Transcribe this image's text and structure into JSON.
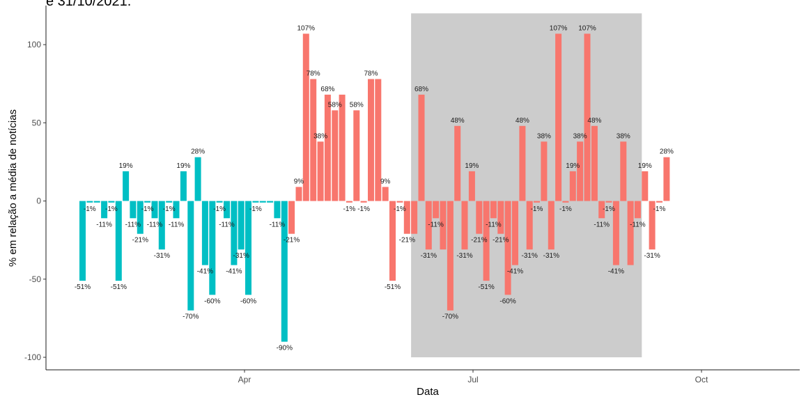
{
  "caption": "e 31/10/2021.",
  "chart_data": {
    "type": "bar",
    "title": "",
    "xlabel": "Data",
    "ylabel": "% em relação a média de notícias",
    "ylim": [
      -108,
      125
    ],
    "y_ticks": [
      -100,
      -50,
      0,
      50,
      100
    ],
    "x_ticks": [
      "Apr",
      "Jul",
      "Oct"
    ],
    "grid": false,
    "legend": "none",
    "highlight_range": {
      "start": "2021-05-03",
      "end": "2021-06-10",
      "color": "#cccccc"
    },
    "colors": {
      "before": "#00bfc4",
      "after": "#f8766d"
    },
    "bars": [
      {
        "date": "2021-01-25",
        "value": -51,
        "label": "-51%",
        "group": "before"
      },
      {
        "date": "2021-01-26",
        "value": -1,
        "label": "-1%",
        "group": "before"
      },
      {
        "date": "2021-01-28",
        "value": -1,
        "label": "",
        "group": "before"
      },
      {
        "date": "2021-02-01",
        "value": -11,
        "label": "-11%",
        "group": "before"
      },
      {
        "date": "2021-02-02",
        "value": -1,
        "label": "-1%",
        "group": "before"
      },
      {
        "date": "2021-02-04",
        "value": -51,
        "label": "-51%",
        "group": "before"
      },
      {
        "date": "2021-02-05",
        "value": 19,
        "label": "19%",
        "group": "before"
      },
      {
        "date": "2021-02-06",
        "value": -11,
        "label": "-11%",
        "group": "before"
      },
      {
        "date": "2021-02-08",
        "value": -21,
        "label": "-21%",
        "group": "before"
      },
      {
        "date": "2021-02-09",
        "value": -1,
        "label": "-1%",
        "group": "before"
      },
      {
        "date": "2021-02-10",
        "value": -11,
        "label": "-11%",
        "group": "before"
      },
      {
        "date": "2021-02-12",
        "value": -31,
        "label": "-31%",
        "group": "before"
      },
      {
        "date": "2021-02-13",
        "value": -1,
        "label": "-1%",
        "group": "before"
      },
      {
        "date": "2021-02-15",
        "value": -11,
        "label": "-11%",
        "group": "before"
      },
      {
        "date": "2021-02-16",
        "value": 19,
        "label": "19%",
        "group": "before"
      },
      {
        "date": "2021-02-18",
        "value": -70,
        "label": "-70%",
        "group": "before"
      },
      {
        "date": "2021-02-19",
        "value": 28,
        "label": "28%",
        "group": "before"
      },
      {
        "date": "2021-02-21",
        "value": -41,
        "label": "-41%",
        "group": "before"
      },
      {
        "date": "2021-02-22",
        "value": -60,
        "label": "-60%",
        "group": "before"
      },
      {
        "date": "2021-02-24",
        "value": -1,
        "label": "-1%",
        "group": "before"
      },
      {
        "date": "2021-02-25",
        "value": -11,
        "label": "-11%",
        "group": "before"
      },
      {
        "date": "2021-02-27",
        "value": -41,
        "label": "-41%",
        "group": "before"
      },
      {
        "date": "2021-03-03",
        "value": -31,
        "label": "-31%",
        "group": "before"
      },
      {
        "date": "2021-03-05",
        "value": -60,
        "label": "-60%",
        "group": "before"
      },
      {
        "date": "2021-03-06",
        "value": -1,
        "label": "-1%",
        "group": "before"
      },
      {
        "date": "2021-03-07",
        "value": -1,
        "label": "",
        "group": "before"
      },
      {
        "date": "2021-03-09",
        "value": -1,
        "label": "",
        "group": "before"
      },
      {
        "date": "2021-03-11",
        "value": -11,
        "label": "-11%",
        "group": "before"
      },
      {
        "date": "2021-03-13",
        "value": -90,
        "label": "-90%",
        "group": "before"
      },
      {
        "date": "2021-04-14",
        "value": -21,
        "label": "-21%",
        "group": "after"
      },
      {
        "date": "2021-04-15",
        "value": 9,
        "label": "9%",
        "group": "after"
      },
      {
        "date": "2021-04-16",
        "value": 107,
        "label": "107%",
        "group": "after"
      },
      {
        "date": "2021-04-17",
        "value": 78,
        "label": "78%",
        "group": "after"
      },
      {
        "date": "2021-04-18",
        "value": 38,
        "label": "38%",
        "group": "after"
      },
      {
        "date": "2021-04-19",
        "value": 68,
        "label": "68%",
        "group": "after"
      },
      {
        "date": "2021-04-20",
        "value": 58,
        "label": "58%",
        "group": "after"
      },
      {
        "date": "2021-04-21",
        "value": 68,
        "label": "",
        "group": "after"
      },
      {
        "date": "2021-04-22",
        "value": -1,
        "label": "-1%",
        "group": "after"
      },
      {
        "date": "2021-04-23",
        "value": 58,
        "label": "58%",
        "group": "after"
      },
      {
        "date": "2021-04-24",
        "value": -1,
        "label": "-1%",
        "group": "after"
      },
      {
        "date": "2021-04-25",
        "value": 78,
        "label": "78%",
        "group": "after"
      },
      {
        "date": "2021-04-26",
        "value": 78,
        "label": "",
        "group": "after"
      },
      {
        "date": "2021-04-27",
        "value": 9,
        "label": "9%",
        "group": "after"
      },
      {
        "date": "2021-04-28",
        "value": -51,
        "label": "-51%",
        "group": "after"
      },
      {
        "date": "2021-04-29",
        "value": -1,
        "label": "-1%",
        "group": "after"
      },
      {
        "date": "2021-05-01",
        "value": -21,
        "label": "-21%",
        "group": "after"
      },
      {
        "date": "2021-05-03",
        "value": -21,
        "label": "",
        "group": "after"
      },
      {
        "date": "2021-05-05",
        "value": 68,
        "label": "68%",
        "group": "after"
      },
      {
        "date": "2021-05-08",
        "value": -31,
        "label": "-31%",
        "group": "after"
      },
      {
        "date": "2021-05-09",
        "value": -11,
        "label": "-11%",
        "group": "after"
      },
      {
        "date": "2021-05-10",
        "value": -31,
        "label": "",
        "group": "after"
      },
      {
        "date": "2021-05-11",
        "value": -70,
        "label": "-70%",
        "group": "after"
      },
      {
        "date": "2021-05-12",
        "value": 48,
        "label": "48%",
        "group": "after"
      },
      {
        "date": "2021-05-13",
        "value": -31,
        "label": "-31%",
        "group": "after"
      },
      {
        "date": "2021-05-14",
        "value": 19,
        "label": "19%",
        "group": "after"
      },
      {
        "date": "2021-05-18",
        "value": -21,
        "label": "-21%",
        "group": "after"
      },
      {
        "date": "2021-05-19",
        "value": -51,
        "label": "-51%",
        "group": "after"
      },
      {
        "date": "2021-05-20",
        "value": -11,
        "label": "-11%",
        "group": "after"
      },
      {
        "date": "2021-05-21",
        "value": -21,
        "label": "-21%",
        "group": "after"
      },
      {
        "date": "2021-05-22",
        "value": -60,
        "label": "-60%",
        "group": "after"
      },
      {
        "date": "2021-05-23",
        "value": -41,
        "label": "-41%",
        "group": "after"
      },
      {
        "date": "2021-05-24",
        "value": 48,
        "label": "48%",
        "group": "after"
      },
      {
        "date": "2021-05-25",
        "value": -31,
        "label": "-31%",
        "group": "after"
      },
      {
        "date": "2021-05-26",
        "value": -1,
        "label": "-1%",
        "group": "after"
      },
      {
        "date": "2021-05-27",
        "value": 38,
        "label": "38%",
        "group": "after"
      },
      {
        "date": "2021-05-28",
        "value": -31,
        "label": "-31%",
        "group": "after"
      },
      {
        "date": "2021-05-29",
        "value": 107,
        "label": "107%",
        "group": "after"
      },
      {
        "date": "2021-05-30",
        "value": -1,
        "label": "-1%",
        "group": "after"
      },
      {
        "date": "2021-05-31",
        "value": 19,
        "label": "19%",
        "group": "after"
      },
      {
        "date": "2021-06-01",
        "value": 38,
        "label": "38%",
        "group": "after"
      },
      {
        "date": "2021-06-02",
        "value": 107,
        "label": "107%",
        "group": "after"
      },
      {
        "date": "2021-06-03",
        "value": 48,
        "label": "48%",
        "group": "after"
      },
      {
        "date": "2021-06-04",
        "value": -11,
        "label": "-11%",
        "group": "after"
      },
      {
        "date": "2021-06-05",
        "value": -1,
        "label": "-1%",
        "group": "after"
      },
      {
        "date": "2021-06-06",
        "value": -41,
        "label": "-41%",
        "group": "after"
      },
      {
        "date": "2021-06-07",
        "value": 38,
        "label": "38%",
        "group": "after"
      },
      {
        "date": "2021-06-08",
        "value": -41,
        "label": "",
        "group": "after"
      },
      {
        "date": "2021-06-09",
        "value": -11,
        "label": "-11%",
        "group": "after"
      },
      {
        "date": "2021-06-11",
        "value": 19,
        "label": "19%",
        "group": "after"
      },
      {
        "date": "2021-06-12",
        "value": -31,
        "label": "-31%",
        "group": "after"
      },
      {
        "date": "2021-06-13",
        "value": -1,
        "label": "-1%",
        "group": "after"
      },
      {
        "date": "2021-06-14",
        "value": 28,
        "label": "28%",
        "group": "after"
      }
    ]
  }
}
